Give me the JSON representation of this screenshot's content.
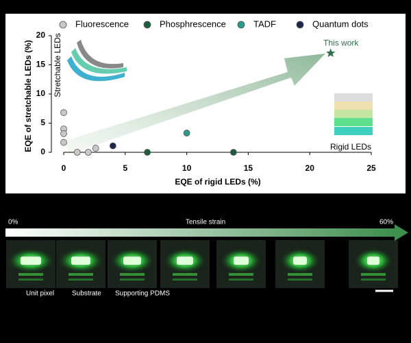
{
  "chart_data": {
    "type": "scatter",
    "xlabel": "EQE of rigid LEDs  (%)",
    "ylabel": "EQE of stretchable LEDs (%)",
    "xlim": [
      0,
      25
    ],
    "xticks": [
      0,
      5,
      10,
      15,
      20,
      25
    ],
    "ylim": [
      0,
      20
    ],
    "yticks": [
      0,
      5,
      10,
      15,
      20
    ],
    "series": [
      {
        "name": "Fluorescence",
        "color": "#c8c8c8",
        "x": [
          0,
          0,
          0,
          0,
          1.1,
          2,
          2.6
        ],
        "values": [
          6.8,
          4,
          3.2,
          1.7,
          0,
          0,
          0.7
        ]
      },
      {
        "name": "Phosphrescence",
        "color": "#1e5e3e",
        "x": [
          6.8,
          13.8
        ],
        "values": [
          0,
          0
        ]
      },
      {
        "name": "TADF",
        "color": "#2a9a8a",
        "x": [
          10
        ],
        "values": [
          3.3
        ]
      },
      {
        "name": "Quantum dots",
        "color": "#1f2a4a",
        "x": [
          4
        ],
        "values": [
          1.1
        ]
      }
    ],
    "highlight": {
      "label": "This work",
      "color": "#2e6e48",
      "x": 21.7,
      "y": 17
    },
    "annotations": [
      "Stretchable LEDs",
      "Rigid LEDs"
    ]
  },
  "photo_strip": {
    "start": "0%",
    "title": "Tensile strain",
    "end": "60%",
    "labels": [
      "Unit pixel",
      "Substrate",
      "Supporting PDMS"
    ]
  }
}
